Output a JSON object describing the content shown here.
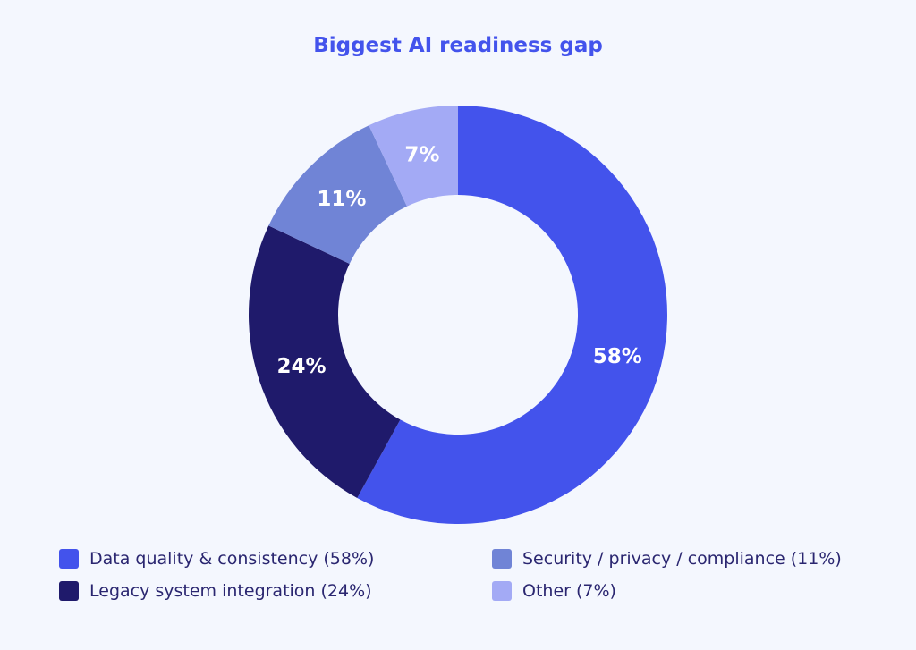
{
  "chart_data": {
    "type": "pie",
    "title": "Biggest AI readiness gap",
    "donut": true,
    "categories": [
      "Data quality & consistency",
      "Legacy system integration",
      "Security / privacy / compliance",
      "Other"
    ],
    "values": [
      58,
      24,
      11,
      7
    ],
    "data_labels": [
      "58%",
      "24%",
      "11%",
      "7%"
    ],
    "colors": [
      "#4353EC",
      "#1F1A6B",
      "#7084D6",
      "#A3AAF5"
    ],
    "legend_labels": [
      "Data quality & consistency (58%)",
      "Legacy system integration (24%)",
      "Security / privacy / compliance (11%)",
      "Other (7%)"
    ],
    "legend_position": "bottom"
  }
}
